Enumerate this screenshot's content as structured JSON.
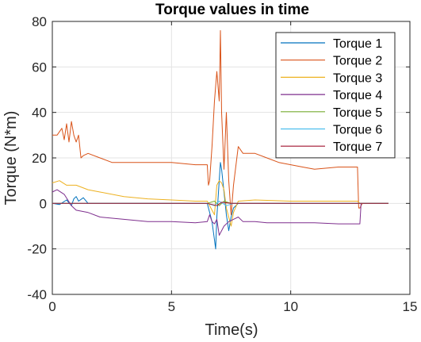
{
  "chart_data": {
    "type": "line",
    "title": "Torque values in time",
    "xlabel": "Time(s)",
    "ylabel": "Torque (N*m)",
    "xlim": [
      0,
      15
    ],
    "ylim": [
      -40,
      80
    ],
    "xticks": [
      0,
      5,
      10,
      15
    ],
    "yticks": [
      -40,
      -20,
      0,
      20,
      40,
      60,
      80
    ],
    "grid": true,
    "legend_position": "top-right",
    "series": [
      {
        "name": "Torque 1",
        "color": "#0072BD",
        "points": [
          [
            0,
            0
          ],
          [
            0.3,
            -0.5
          ],
          [
            0.6,
            1.5
          ],
          [
            0.8,
            -1
          ],
          [
            0.9,
            2
          ],
          [
            1.0,
            3
          ],
          [
            1.1,
            1
          ],
          [
            1.3,
            2.5
          ],
          [
            1.5,
            0
          ],
          [
            2,
            0
          ],
          [
            4,
            0
          ],
          [
            6,
            0
          ],
          [
            6.5,
            0
          ],
          [
            6.6,
            -4
          ],
          [
            6.7,
            -8
          ],
          [
            6.8,
            -16
          ],
          [
            6.85,
            -20
          ],
          [
            6.9,
            -6
          ],
          [
            7.0,
            10
          ],
          [
            7.05,
            18
          ],
          [
            7.1,
            15
          ],
          [
            7.2,
            5
          ],
          [
            7.3,
            -5
          ],
          [
            7.4,
            -12
          ],
          [
            7.5,
            -6
          ],
          [
            7.6,
            -2
          ],
          [
            7.8,
            0
          ],
          [
            8.5,
            0
          ],
          [
            12.9,
            0
          ],
          [
            13,
            0
          ],
          [
            14.1,
            0
          ]
        ]
      },
      {
        "name": "Torque 2",
        "color": "#D95319",
        "points": [
          [
            0,
            30
          ],
          [
            0.2,
            30
          ],
          [
            0.4,
            33
          ],
          [
            0.5,
            28
          ],
          [
            0.6,
            35
          ],
          [
            0.7,
            27
          ],
          [
            0.8,
            36
          ],
          [
            0.9,
            30
          ],
          [
            1.0,
            27
          ],
          [
            1.1,
            30
          ],
          [
            1.2,
            20
          ],
          [
            1.3,
            21
          ],
          [
            1.5,
            22
          ],
          [
            2.0,
            20
          ],
          [
            2.5,
            18
          ],
          [
            3.0,
            18
          ],
          [
            4.0,
            18
          ],
          [
            5.0,
            18
          ],
          [
            6.0,
            17
          ],
          [
            6.5,
            17
          ],
          [
            6.55,
            8
          ],
          [
            6.6,
            10
          ],
          [
            6.7,
            25
          ],
          [
            6.8,
            45
          ],
          [
            6.9,
            58
          ],
          [
            7.0,
            45
          ],
          [
            7.05,
            76
          ],
          [
            7.1,
            40
          ],
          [
            7.2,
            15
          ],
          [
            7.3,
            40
          ],
          [
            7.4,
            10
          ],
          [
            7.5,
            -5
          ],
          [
            7.6,
            8
          ],
          [
            7.8,
            25
          ],
          [
            8.0,
            22
          ],
          [
            8.5,
            22
          ],
          [
            9.0,
            20
          ],
          [
            9.5,
            18
          ],
          [
            10.0,
            17
          ],
          [
            10.5,
            16
          ],
          [
            11.0,
            15
          ],
          [
            12.0,
            16
          ],
          [
            12.8,
            16
          ],
          [
            12.85,
            -2
          ],
          [
            12.9,
            -2
          ],
          [
            13,
            0
          ],
          [
            14.1,
            0
          ]
        ]
      },
      {
        "name": "Torque 3",
        "color": "#EDB120",
        "points": [
          [
            0,
            9
          ],
          [
            0.3,
            10
          ],
          [
            0.6,
            8
          ],
          [
            1.0,
            8
          ],
          [
            1.5,
            6
          ],
          [
            2.0,
            5
          ],
          [
            3.0,
            3
          ],
          [
            4.0,
            2
          ],
          [
            5.0,
            1.5
          ],
          [
            6.0,
            1
          ],
          [
            6.5,
            1
          ],
          [
            6.7,
            -3
          ],
          [
            6.8,
            -5
          ],
          [
            6.9,
            8
          ],
          [
            7.0,
            10
          ],
          [
            7.1,
            9
          ],
          [
            7.2,
            6
          ],
          [
            7.3,
            -2
          ],
          [
            7.5,
            -10
          ],
          [
            7.6,
            -4
          ],
          [
            7.8,
            1
          ],
          [
            8.5,
            1.5
          ],
          [
            10,
            1
          ],
          [
            12.8,
            1
          ],
          [
            12.9,
            0
          ],
          [
            14.1,
            0
          ]
        ]
      },
      {
        "name": "Torque 4",
        "color": "#7E2F8E",
        "points": [
          [
            0,
            5
          ],
          [
            0.2,
            6
          ],
          [
            0.5,
            4
          ],
          [
            0.8,
            -1
          ],
          [
            1.0,
            -3
          ],
          [
            1.5,
            -4
          ],
          [
            2.0,
            -6
          ],
          [
            3.0,
            -7
          ],
          [
            4.0,
            -8
          ],
          [
            5.0,
            -8
          ],
          [
            6.0,
            -8.5
          ],
          [
            6.5,
            -8
          ],
          [
            6.6,
            -5
          ],
          [
            6.7,
            -8
          ],
          [
            6.8,
            -9
          ],
          [
            6.9,
            -7
          ],
          [
            7.0,
            -14
          ],
          [
            7.2,
            -10
          ],
          [
            7.4,
            -8
          ],
          [
            7.6,
            -7
          ],
          [
            7.8,
            -6
          ],
          [
            8.0,
            -8
          ],
          [
            8.5,
            -8
          ],
          [
            9.0,
            -8.5
          ],
          [
            10,
            -8.5
          ],
          [
            11,
            -8.5
          ],
          [
            12,
            -9
          ],
          [
            12.9,
            -9
          ],
          [
            12.95,
            0
          ],
          [
            14.1,
            0
          ]
        ]
      },
      {
        "name": "Torque 5",
        "color": "#77AC30",
        "points": [
          [
            0,
            0
          ],
          [
            6.5,
            0
          ],
          [
            6.8,
            1
          ],
          [
            7.0,
            -1
          ],
          [
            7.2,
            1
          ],
          [
            7.5,
            0
          ],
          [
            14.1,
            0
          ]
        ]
      },
      {
        "name": "Torque 6",
        "color": "#4DBEEE",
        "points": [
          [
            0,
            0
          ],
          [
            6.5,
            0
          ],
          [
            6.8,
            -1
          ],
          [
            7.0,
            1
          ],
          [
            7.3,
            -1
          ],
          [
            7.6,
            0
          ],
          [
            14.1,
            0
          ]
        ]
      },
      {
        "name": "Torque 7",
        "color": "#A2142F",
        "points": [
          [
            0,
            0
          ],
          [
            6.5,
            0
          ],
          [
            6.9,
            -1
          ],
          [
            7.1,
            0.5
          ],
          [
            7.5,
            0
          ],
          [
            14.1,
            0
          ]
        ]
      }
    ]
  }
}
